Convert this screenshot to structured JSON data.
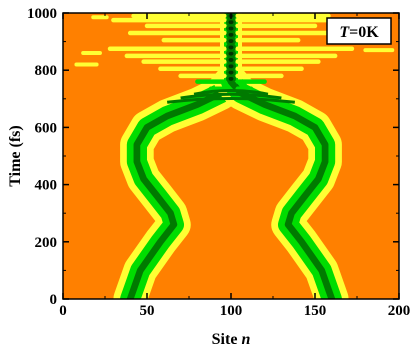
{
  "chart_data": {
    "type": "heatmap",
    "title": "",
    "xlabel": "Site n",
    "xlabel_main": "Site",
    "xlabel_var": "n",
    "ylabel": "Time (fs)",
    "xlim": [
      0,
      200
    ],
    "ylim": [
      0,
      1000
    ],
    "xticks": [
      "0",
      "50",
      "100",
      "150",
      "200"
    ],
    "yticks": [
      "0",
      "200",
      "400",
      "600",
      "800",
      "1000"
    ],
    "annotation": {
      "var": "T",
      "rest": "=0K"
    },
    "colors": {
      "background": "#ff8000",
      "level1": "#ffff33",
      "level2": "#00dd00",
      "level3": "#007a00",
      "level4": "#003300"
    },
    "contours": [
      {
        "side": "left",
        "points_time_site": [
          [
            0,
            40
          ],
          [
            100,
            46
          ],
          [
            200,
            58
          ],
          [
            260,
            66
          ],
          [
            300,
            64
          ],
          [
            360,
            56
          ],
          [
            420,
            48
          ],
          [
            480,
            44
          ],
          [
            540,
            44
          ],
          [
            600,
            50
          ],
          [
            640,
            62
          ],
          [
            680,
            80
          ],
          [
            720,
            94
          ],
          [
            760,
            100
          ]
        ]
      },
      {
        "side": "right",
        "points_time_site": [
          [
            0,
            160
          ],
          [
            100,
            154
          ],
          [
            200,
            142
          ],
          [
            260,
            134
          ],
          [
            300,
            136
          ],
          [
            360,
            144
          ],
          [
            420,
            152
          ],
          [
            480,
            156
          ],
          [
            540,
            156
          ],
          [
            600,
            150
          ],
          [
            640,
            138
          ],
          [
            680,
            120
          ],
          [
            720,
            106
          ],
          [
            760,
            100
          ]
        ]
      }
    ]
  }
}
